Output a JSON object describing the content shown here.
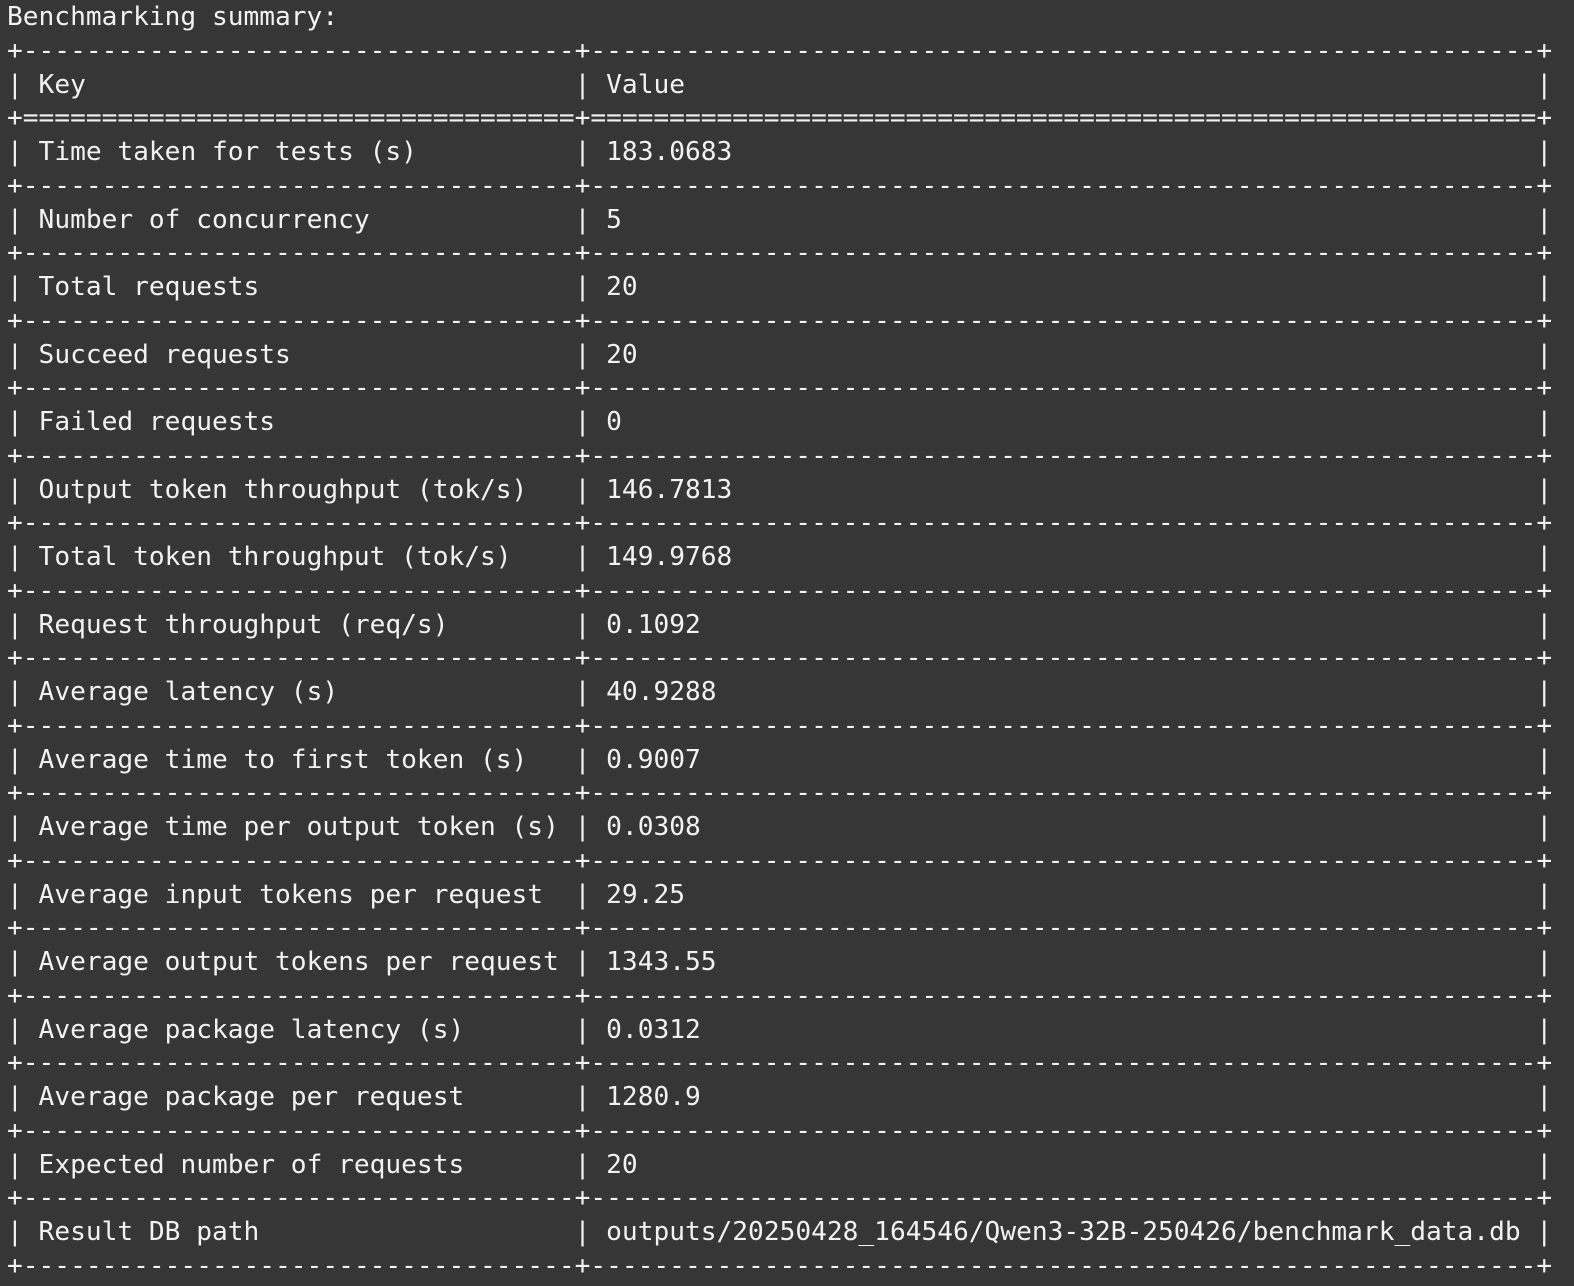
{
  "title": "Benchmarking summary:",
  "table": {
    "headers": [
      "Key",
      "Value"
    ],
    "rows": [
      [
        "Time taken for tests (s)",
        "183.0683"
      ],
      [
        "Number of concurrency",
        "5"
      ],
      [
        "Total requests",
        "20"
      ],
      [
        "Succeed requests",
        "20"
      ],
      [
        "Failed requests",
        "0"
      ],
      [
        "Output token throughput (tok/s)",
        "146.7813"
      ],
      [
        "Total token throughput (tok/s)",
        "149.9768"
      ],
      [
        "Request throughput (req/s)",
        "0.1092"
      ],
      [
        "Average latency (s)",
        "40.9288"
      ],
      [
        "Average time to first token (s)",
        "0.9007"
      ],
      [
        "Average time per output token (s)",
        "0.0308"
      ],
      [
        "Average input tokens per request",
        "29.25"
      ],
      [
        "Average output tokens per request",
        "1343.55"
      ],
      [
        "Average package latency (s)",
        "0.0312"
      ],
      [
        "Average package per request",
        "1280.9"
      ],
      [
        "Expected number of requests",
        "20"
      ],
      [
        "Result DB path",
        "outputs/20250428_164546/Qwen3-32B-250426/benchmark_data.db"
      ]
    ]
  },
  "colors": {
    "background": "#363636",
    "text": "#f2f2f2"
  }
}
